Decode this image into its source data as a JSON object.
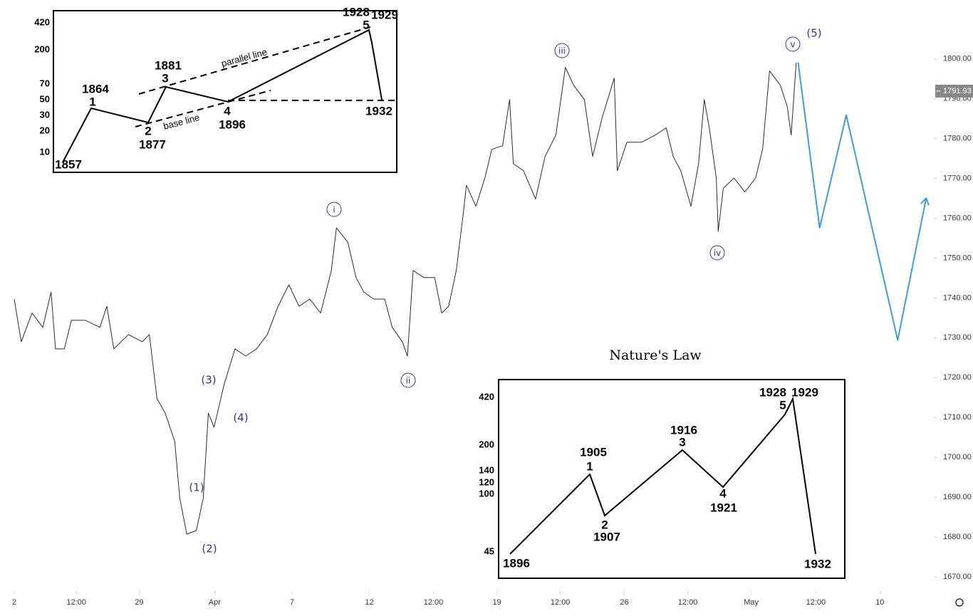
{
  "chart_data": {
    "type": "line",
    "xlim": [
      -0.225,
      14.5
    ],
    "ylim": [
      1666.4,
      1814.8
    ],
    "xticks": [
      {
        "value": 0,
        "label": "2"
      },
      {
        "value": 0.98,
        "label": "12:00"
      },
      {
        "value": 1.97,
        "label": "29"
      },
      {
        "value": 3.16,
        "label": "Apr"
      },
      {
        "value": 4.38,
        "label": "7"
      },
      {
        "value": 5.6,
        "label": "12"
      },
      {
        "value": 6.61,
        "label": "12:00"
      },
      {
        "value": 7.61,
        "label": "19"
      },
      {
        "value": 8.61,
        "label": "12:00"
      },
      {
        "value": 9.62,
        "label": "26"
      },
      {
        "value": 10.62,
        "label": "12:00"
      },
      {
        "value": 11.62,
        "label": "May"
      },
      {
        "value": 12.64,
        "label": "12:00"
      },
      {
        "value": 13.65,
        "label": "10"
      }
    ],
    "yticks": [
      {
        "value": 1800,
        "label": "1800.00"
      },
      {
        "value": 1790,
        "label": "1790.00"
      },
      {
        "value": 1780,
        "label": "1780.00"
      },
      {
        "value": 1770,
        "label": "1770.00"
      },
      {
        "value": 1760,
        "label": "1760.00"
      },
      {
        "value": 1750,
        "label": "1750.00"
      },
      {
        "value": 1740,
        "label": "1740.00"
      },
      {
        "value": 1730,
        "label": "1730.00"
      },
      {
        "value": 1720,
        "label": "1720.00"
      },
      {
        "value": 1710,
        "label": "1710.00"
      },
      {
        "value": 1700,
        "label": "1700.00"
      },
      {
        "value": 1690,
        "label": "1690.00"
      },
      {
        "value": 1680,
        "label": "1680.00"
      },
      {
        "value": 1670,
        "label": "1670.00"
      }
    ],
    "series": [
      {
        "color": "#2b2b2b",
        "x": [
          0,
          0.11,
          0.28,
          0.45,
          0.58,
          0.65,
          0.79,
          0.9,
          1.12,
          1.35,
          1.46,
          1.57,
          1.8,
          2.02,
          2.13,
          2.25,
          2.38,
          2.53,
          2.61,
          2.72,
          2.87,
          2.98,
          3.06,
          3.15,
          3.31,
          3.48,
          3.65,
          3.82,
          3.99,
          4.16,
          4.33,
          4.49,
          4.66,
          4.83,
          5.0,
          5.08,
          5.26,
          5.39,
          5.51,
          5.67,
          5.84,
          5.96,
          6.12,
          6.2,
          6.29,
          6.46,
          6.63,
          6.74,
          6.85,
          6.97,
          7.08,
          7.13,
          7.28,
          7.42,
          7.53,
          7.7,
          7.81,
          7.87,
          8.03,
          8.22,
          8.37,
          8.54,
          8.69,
          8.82,
          8.99,
          9.12,
          9.27,
          9.46,
          9.51,
          9.66,
          9.89,
          10.11,
          10.28,
          10.39,
          10.51,
          10.67,
          10.79,
          10.88,
          10.96,
          11.07,
          11.1,
          11.18,
          11.35,
          11.52,
          11.69,
          11.8,
          11.91,
          12.08,
          12.19,
          12.25,
          12.33
        ],
        "values": [
          1739.7,
          1729.0,
          1736.2,
          1732.6,
          1741.5,
          1727.2,
          1727.2,
          1734.4,
          1734.4,
          1732.6,
          1737.9,
          1727.2,
          1730.8,
          1729.0,
          1730.8,
          1714.7,
          1711.1,
          1704.0,
          1689.7,
          1680.7,
          1681.6,
          1689.7,
          1711.1,
          1707.5,
          1718.3,
          1727.2,
          1725.4,
          1727.2,
          1730.8,
          1737.9,
          1743.3,
          1737.9,
          1739.7,
          1736.2,
          1746.9,
          1757.6,
          1754.0,
          1745.1,
          1741.5,
          1739.7,
          1739.7,
          1732.6,
          1729.0,
          1725.4,
          1746.9,
          1745.1,
          1745.1,
          1736.2,
          1737.9,
          1746.9,
          1761.2,
          1768.3,
          1763.0,
          1770.1,
          1777.3,
          1778.2,
          1789.8,
          1773.7,
          1771.9,
          1764.8,
          1775.5,
          1780.9,
          1797.9,
          1793.4,
          1789.8,
          1775.5,
          1785.3,
          1795.2,
          1771.9,
          1779.1,
          1779.1,
          1780.9,
          1782.7,
          1775.5,
          1771.9,
          1763.0,
          1773.7,
          1789.8,
          1782.7,
          1770.1,
          1756.7,
          1767.5,
          1770.1,
          1766.6,
          1770.1,
          1777.3,
          1797.0,
          1793.4,
          1788.0,
          1780.9,
          1799.1
        ]
      },
      {
        "color": "#3a9be8",
        "x": [
          12.36,
          12.7,
          13.12,
          13.93,
          14.38
        ],
        "values": [
          1799.1,
          1757.6,
          1785.9,
          1729.4,
          1765.1
        ]
      }
    ],
    "last_price": 1791.93,
    "wave_labels": [
      "(1)",
      "(2)",
      "(3)",
      "(4)",
      "(5)",
      "i",
      "ii",
      "iii",
      "iv",
      "v"
    ]
  },
  "inset_top": {
    "y_labels": [
      "420",
      "200",
      "70",
      "50",
      "30",
      "20",
      "10"
    ],
    "point_labels": [
      "1857",
      "1864",
      "1",
      "1881",
      "3",
      "2",
      "1877",
      "4",
      "1896",
      "1928",
      "5",
      "1929",
      "1932"
    ],
    "line_labels": [
      "parallel line",
      "base line"
    ]
  },
  "inset_bottom": {
    "title": "Nature's Law",
    "y_labels": [
      "420",
      "200",
      "140",
      "120",
      "100",
      "45"
    ],
    "point_labels": [
      "1896",
      "1905",
      "1",
      "2",
      "1907",
      "1916",
      "3",
      "4",
      "1921",
      "1928",
      "5",
      "1929",
      "1932"
    ]
  }
}
